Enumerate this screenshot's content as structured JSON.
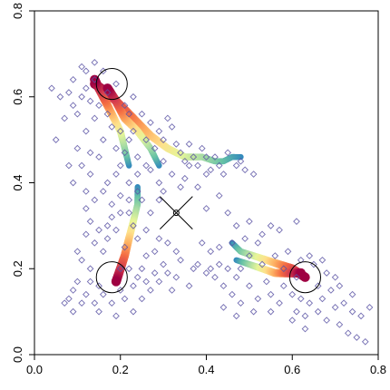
{
  "chart_data": {
    "type": "scatter",
    "title": "",
    "xlabel": "",
    "ylabel": "",
    "xlim": [
      0,
      0.8
    ],
    "ylim": [
      0,
      0.8
    ],
    "x_ticks": [
      "0.0",
      "0.2",
      "0.4",
      "0.6",
      "0.8"
    ],
    "y_ticks": [
      "0.0",
      "0.2",
      "0.4",
      "0.6",
      "0.8"
    ],
    "grid": false,
    "marker": "open-diamond",
    "point_color": "#5b54a4",
    "trail_palette": [
      "#3288bd",
      "#66c2a5",
      "#abdda4",
      "#e6f598",
      "#fee08b",
      "#fdae61",
      "#f46d43",
      "#d53e4f",
      "#9e0142"
    ],
    "points": [
      [
        0.04,
        0.62
      ],
      [
        0.06,
        0.6
      ],
      [
        0.05,
        0.5
      ],
      [
        0.08,
        0.61
      ],
      [
        0.09,
        0.58
      ],
      [
        0.1,
        0.56
      ],
      [
        0.11,
        0.6
      ],
      [
        0.12,
        0.62
      ],
      [
        0.1,
        0.48
      ],
      [
        0.11,
        0.44
      ],
      [
        0.12,
        0.52
      ],
      [
        0.13,
        0.47
      ],
      [
        0.14,
        0.55
      ],
      [
        0.13,
        0.42
      ],
      [
        0.15,
        0.46
      ],
      [
        0.16,
        0.5
      ],
      [
        0.15,
        0.58
      ],
      [
        0.17,
        0.56
      ],
      [
        0.18,
        0.53
      ],
      [
        0.19,
        0.48
      ],
      [
        0.14,
        0.64
      ],
      [
        0.16,
        0.66
      ],
      [
        0.17,
        0.61
      ],
      [
        0.13,
        0.59
      ],
      [
        0.12,
        0.66
      ],
      [
        0.2,
        0.44
      ],
      [
        0.21,
        0.47
      ],
      [
        0.22,
        0.5
      ],
      [
        0.24,
        0.46
      ],
      [
        0.23,
        0.52
      ],
      [
        0.25,
        0.56
      ],
      [
        0.26,
        0.5
      ],
      [
        0.28,
        0.48
      ],
      [
        0.27,
        0.54
      ],
      [
        0.29,
        0.52
      ],
      [
        0.3,
        0.5
      ],
      [
        0.31,
        0.55
      ],
      [
        0.32,
        0.53
      ],
      [
        0.33,
        0.49
      ],
      [
        0.34,
        0.47
      ],
      [
        0.35,
        0.45
      ],
      [
        0.36,
        0.44
      ],
      [
        0.37,
        0.46
      ],
      [
        0.38,
        0.44
      ],
      [
        0.4,
        0.46
      ],
      [
        0.41,
        0.43
      ],
      [
        0.42,
        0.46
      ],
      [
        0.43,
        0.44
      ],
      [
        0.45,
        0.47
      ],
      [
        0.44,
        0.42
      ],
      [
        0.47,
        0.44
      ],
      [
        0.48,
        0.45
      ],
      [
        0.49,
        0.43
      ],
      [
        0.51,
        0.42
      ],
      [
        0.4,
        0.42
      ],
      [
        0.38,
        0.39
      ],
      [
        0.35,
        0.41
      ],
      [
        0.3,
        0.45
      ],
      [
        0.32,
        0.42
      ],
      [
        0.29,
        0.4
      ],
      [
        0.26,
        0.44
      ],
      [
        0.24,
        0.42
      ],
      [
        0.22,
        0.4
      ],
      [
        0.2,
        0.37
      ],
      [
        0.18,
        0.35
      ],
      [
        0.16,
        0.38
      ],
      [
        0.14,
        0.36
      ],
      [
        0.12,
        0.34
      ],
      [
        0.13,
        0.31
      ],
      [
        0.15,
        0.29
      ],
      [
        0.17,
        0.27
      ],
      [
        0.18,
        0.32
      ],
      [
        0.19,
        0.29
      ],
      [
        0.21,
        0.25
      ],
      [
        0.22,
        0.33
      ],
      [
        0.2,
        0.2
      ],
      [
        0.16,
        0.24
      ],
      [
        0.14,
        0.26
      ],
      [
        0.13,
        0.2
      ],
      [
        0.11,
        0.22
      ],
      [
        0.1,
        0.17
      ],
      [
        0.09,
        0.15
      ],
      [
        0.08,
        0.13
      ],
      [
        0.07,
        0.12
      ],
      [
        0.09,
        0.1
      ],
      [
        0.11,
        0.12
      ],
      [
        0.12,
        0.14
      ],
      [
        0.14,
        0.12
      ],
      [
        0.15,
        0.16
      ],
      [
        0.16,
        0.14
      ],
      [
        0.18,
        0.12
      ],
      [
        0.2,
        0.15
      ],
      [
        0.21,
        0.13
      ],
      [
        0.23,
        0.16
      ],
      [
        0.24,
        0.18
      ],
      [
        0.22,
        0.2
      ],
      [
        0.25,
        0.2
      ],
      [
        0.26,
        0.17
      ],
      [
        0.27,
        0.15
      ],
      [
        0.28,
        0.19
      ],
      [
        0.29,
        0.17
      ],
      [
        0.3,
        0.21
      ],
      [
        0.31,
        0.19
      ],
      [
        0.33,
        0.18
      ],
      [
        0.34,
        0.22
      ],
      [
        0.32,
        0.15
      ],
      [
        0.25,
        0.13
      ],
      [
        0.23,
        0.1
      ],
      [
        0.19,
        0.09
      ],
      [
        0.15,
        0.1
      ],
      [
        0.13,
        0.17
      ],
      [
        0.12,
        0.28
      ],
      [
        0.1,
        0.24
      ],
      [
        0.26,
        0.23
      ],
      [
        0.28,
        0.24
      ],
      [
        0.29,
        0.27
      ],
      [
        0.24,
        0.27
      ],
      [
        0.31,
        0.26
      ],
      [
        0.33,
        0.24
      ],
      [
        0.23,
        0.3
      ],
      [
        0.25,
        0.36
      ],
      [
        0.24,
        0.38
      ],
      [
        0.22,
        0.36
      ],
      [
        0.2,
        0.33
      ],
      [
        0.17,
        0.3
      ],
      [
        0.17,
        0.4
      ],
      [
        0.19,
        0.42
      ],
      [
        0.38,
        0.21
      ],
      [
        0.4,
        0.19
      ],
      [
        0.41,
        0.2
      ],
      [
        0.42,
        0.18
      ],
      [
        0.43,
        0.21
      ],
      [
        0.44,
        0.16
      ],
      [
        0.45,
        0.2
      ],
      [
        0.46,
        0.14
      ],
      [
        0.47,
        0.18
      ],
      [
        0.48,
        0.12
      ],
      [
        0.5,
        0.16
      ],
      [
        0.52,
        0.13
      ],
      [
        0.54,
        0.17
      ],
      [
        0.55,
        0.14
      ],
      [
        0.57,
        0.12
      ],
      [
        0.58,
        0.16
      ],
      [
        0.6,
        0.14
      ],
      [
        0.61,
        0.1
      ],
      [
        0.62,
        0.13
      ],
      [
        0.63,
        0.09
      ],
      [
        0.64,
        0.12
      ],
      [
        0.66,
        0.1
      ],
      [
        0.67,
        0.13
      ],
      [
        0.68,
        0.08
      ],
      [
        0.7,
        0.11
      ],
      [
        0.71,
        0.07
      ],
      [
        0.72,
        0.12
      ],
      [
        0.73,
        0.05
      ],
      [
        0.74,
        0.1
      ],
      [
        0.75,
        0.04
      ],
      [
        0.76,
        0.09
      ],
      [
        0.77,
        0.03
      ],
      [
        0.78,
        0.11
      ],
      [
        0.66,
        0.16
      ],
      [
        0.68,
        0.19
      ],
      [
        0.69,
        0.15
      ],
      [
        0.7,
        0.18
      ],
      [
        0.65,
        0.21
      ],
      [
        0.64,
        0.23
      ],
      [
        0.62,
        0.22
      ],
      [
        0.59,
        0.24
      ],
      [
        0.56,
        0.23
      ],
      [
        0.53,
        0.21
      ],
      [
        0.5,
        0.23
      ],
      [
        0.48,
        0.2
      ],
      [
        0.46,
        0.26
      ],
      [
        0.49,
        0.27
      ],
      [
        0.52,
        0.26
      ],
      [
        0.43,
        0.25
      ],
      [
        0.41,
        0.24
      ],
      [
        0.39,
        0.26
      ],
      [
        0.37,
        0.2
      ],
      [
        0.36,
        0.16
      ],
      [
        0.58,
        0.2
      ],
      [
        0.61,
        0.18
      ],
      [
        0.67,
        0.22
      ],
      [
        0.71,
        0.16
      ],
      [
        0.74,
        0.14
      ],
      [
        0.63,
        0.06
      ],
      [
        0.6,
        0.08
      ],
      [
        0.55,
        0.1
      ],
      [
        0.51,
        0.1
      ],
      [
        0.47,
        0.09
      ],
      [
        0.44,
        0.11
      ],
      [
        0.57,
        0.29
      ],
      [
        0.55,
        0.3
      ],
      [
        0.53,
        0.28
      ],
      [
        0.5,
        0.31
      ],
      [
        0.61,
        0.31
      ],
      [
        0.47,
        0.3
      ],
      [
        0.4,
        0.34
      ],
      [
        0.43,
        0.37
      ],
      [
        0.45,
        0.33
      ],
      [
        0.27,
        0.33
      ],
      [
        0.29,
        0.36
      ],
      [
        0.26,
        0.29
      ],
      [
        0.12,
        0.38
      ],
      [
        0.09,
        0.4
      ],
      [
        0.08,
        0.44
      ],
      [
        0.07,
        0.55
      ],
      [
        0.09,
        0.64
      ],
      [
        0.11,
        0.67
      ],
      [
        0.14,
        0.68
      ],
      [
        0.19,
        0.63
      ],
      [
        0.21,
        0.58
      ],
      [
        0.23,
        0.6
      ],
      [
        0.22,
        0.56
      ],
      [
        0.2,
        0.52
      ],
      [
        0.27,
        0.43
      ],
      [
        0.3,
        0.38
      ],
      [
        0.34,
        0.39
      ],
      [
        0.36,
        0.49
      ],
      [
        0.39,
        0.48
      ]
    ],
    "trails": [
      {
        "path": [
          [
            0.14,
            0.63
          ],
          [
            0.17,
            0.61
          ],
          [
            0.2,
            0.58
          ],
          [
            0.23,
            0.55
          ],
          [
            0.27,
            0.51
          ],
          [
            0.31,
            0.48
          ],
          [
            0.35,
            0.46
          ],
          [
            0.39,
            0.46
          ],
          [
            0.42,
            0.45
          ],
          [
            0.44,
            0.45
          ],
          [
            0.46,
            0.46
          ],
          [
            0.48,
            0.46
          ]
        ],
        "heat_end": "start"
      },
      {
        "path": [
          [
            0.14,
            0.64
          ],
          [
            0.16,
            0.6
          ],
          [
            0.18,
            0.56
          ],
          [
            0.2,
            0.52
          ],
          [
            0.21,
            0.48
          ],
          [
            0.22,
            0.44
          ]
        ],
        "heat_end": "start"
      },
      {
        "path": [
          [
            0.17,
            0.62
          ],
          [
            0.19,
            0.59
          ],
          [
            0.21,
            0.55
          ],
          [
            0.24,
            0.52
          ],
          [
            0.27,
            0.48
          ],
          [
            0.29,
            0.44
          ]
        ],
        "heat_end": "start"
      },
      {
        "path": [
          [
            0.19,
            0.17
          ],
          [
            0.2,
            0.2
          ],
          [
            0.21,
            0.23
          ],
          [
            0.22,
            0.27
          ],
          [
            0.23,
            0.31
          ],
          [
            0.24,
            0.35
          ],
          [
            0.24,
            0.39
          ]
        ],
        "heat_end": "start"
      },
      {
        "path": [
          [
            0.63,
            0.18
          ],
          [
            0.6,
            0.2
          ],
          [
            0.57,
            0.21
          ],
          [
            0.54,
            0.22
          ],
          [
            0.51,
            0.23
          ],
          [
            0.48,
            0.24
          ],
          [
            0.46,
            0.26
          ]
        ],
        "heat_end": "start"
      },
      {
        "path": [
          [
            0.62,
            0.19
          ],
          [
            0.59,
            0.19
          ],
          [
            0.56,
            0.19
          ],
          [
            0.53,
            0.2
          ],
          [
            0.5,
            0.21
          ],
          [
            0.47,
            0.22
          ]
        ],
        "heat_end": "start"
      }
    ],
    "circles": [
      {
        "cx": 0.18,
        "cy": 0.63
      },
      {
        "cx": 0.18,
        "cy": 0.18
      },
      {
        "cx": 0.63,
        "cy": 0.18
      }
    ],
    "circle_radius": 0.036,
    "center_marker": {
      "x": 0.33,
      "y": 0.33
    }
  }
}
